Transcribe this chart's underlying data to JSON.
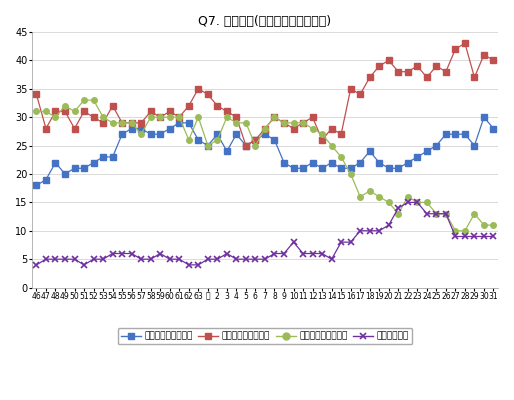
{
  "title": "Q7. 働く目的(主な項目の経年変化)",
  "x_labels": [
    "46",
    "47",
    "48",
    "49",
    "50",
    "51",
    "52",
    "53",
    "54",
    "55",
    "56",
    "57",
    "58",
    "59",
    "60",
    "61",
    "62",
    "63",
    "元",
    "2",
    "3",
    "4",
    "5",
    "6",
    "7",
    "8",
    "9",
    "10",
    "11",
    "12",
    "13",
    "14",
    "15",
    "16",
    "17",
    "18",
    "19",
    "20",
    "21",
    "22",
    "23",
    "24",
    "25",
    "26",
    "27",
    "28",
    "29",
    "30",
    "31"
  ],
  "series_order": [
    "経済的に豊かになる",
    "楽しい生活をしたい",
    "自分の能力をためす",
    "社会に役立つ"
  ],
  "series": {
    "経済的に豊かになる": {
      "color": "#4472C4",
      "marker": "s",
      "markersize": 4,
      "values": [
        18,
        19,
        22,
        20,
        21,
        21,
        22,
        23,
        23,
        27,
        28,
        28,
        27,
        27,
        28,
        29,
        29,
        26,
        25,
        27,
        24,
        27,
        25,
        26,
        27,
        26,
        22,
        21,
        21,
        22,
        21,
        22,
        21,
        21,
        22,
        24,
        22,
        21,
        21,
        22,
        23,
        24,
        25,
        27,
        27,
        27,
        25,
        30,
        28
      ]
    },
    "楽しい生活をしたい": {
      "color": "#C0504D",
      "marker": "s",
      "markersize": 4,
      "values": [
        34,
        28,
        31,
        31,
        28,
        31,
        30,
        29,
        32,
        29,
        29,
        29,
        31,
        30,
        31,
        30,
        32,
        35,
        34,
        32,
        31,
        30,
        25,
        26,
        28,
        30,
        29,
        28,
        29,
        30,
        26,
        28,
        27,
        35,
        34,
        37,
        39,
        40,
        38,
        38,
        39,
        37,
        39,
        38,
        42,
        43,
        37,
        41,
        40
      ]
    },
    "自分の能力をためす": {
      "color": "#9BBB59",
      "marker": "o",
      "markersize": 4,
      "values": [
        31,
        31,
        30,
        32,
        31,
        33,
        33,
        30,
        29,
        29,
        29,
        27,
        30,
        30,
        30,
        30,
        26,
        30,
        25,
        26,
        30,
        29,
        29,
        25,
        28,
        30,
        29,
        29,
        29,
        28,
        27,
        25,
        23,
        20,
        16,
        17,
        16,
        15,
        13,
        16,
        15,
        15,
        13,
        13,
        10,
        10,
        13,
        11,
        11
      ]
    },
    "社会に役立つ": {
      "color": "#7030A0",
      "marker": "x",
      "markersize": 4,
      "values": [
        4,
        5,
        5,
        5,
        5,
        4,
        5,
        5,
        6,
        6,
        6,
        5,
        5,
        6,
        5,
        5,
        4,
        4,
        5,
        5,
        6,
        5,
        5,
        5,
        5,
        6,
        6,
        8,
        6,
        6,
        6,
        5,
        8,
        8,
        10,
        10,
        10,
        11,
        14,
        15,
        15,
        13,
        13,
        13,
        9,
        9,
        9,
        9,
        9
      ]
    }
  },
  "ylim": [
    0,
    45
  ],
  "yticks": [
    0,
    5,
    10,
    15,
    20,
    25,
    30,
    35,
    40,
    45
  ],
  "legend_labels": [
    "経済的に豊かになる",
    "楽しい生活をしたい",
    "自分の能力をためす",
    "社会に役立つ"
  ],
  "legend_colors": [
    "#4472C4",
    "#C0504D",
    "#9BBB59",
    "#7030A0"
  ],
  "legend_markers": [
    "s",
    "s",
    "o",
    "x"
  ]
}
